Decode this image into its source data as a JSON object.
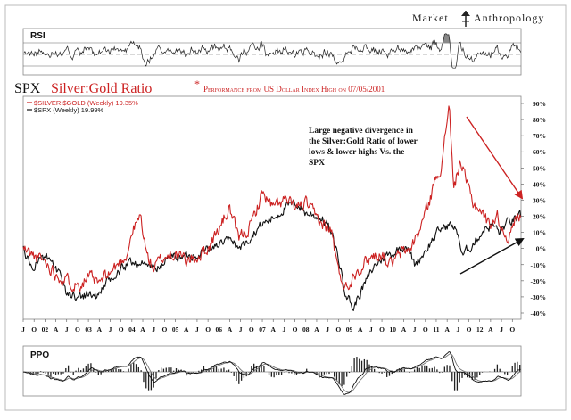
{
  "brand": {
    "name_left": "Market",
    "name_right": "Anthropology"
  },
  "rsi": {
    "label": "RSI"
  },
  "main": {
    "title_black": "SPX",
    "title_red": "Silver:Gold Ratio",
    "asterisk": "*",
    "subtitle": "Performance from US Dollar Index High on 07/05/2001",
    "legend": [
      {
        "text": "$SILVER:$GOLD (Weekly) 19.35%",
        "color": "#cc2222"
      },
      {
        "text": "$SPX (Weekly) 19.99%",
        "color": "#111111"
      }
    ],
    "annotation": [
      "Large negative divergence in",
      "the Silver:Gold Ratio of lower",
      "lows & lower highs Vs. the",
      "SPX"
    ]
  },
  "ppo": {
    "label": "PPO"
  },
  "colors": {
    "silver_gold": "#cc2222",
    "spx": "#111111",
    "arrow_down": "#cc2222",
    "arrow_up": "#111111"
  },
  "chart_data": {
    "type": "line",
    "yunit": "%",
    "ylim": [
      -40,
      90
    ],
    "y_ticks": [
      "90%",
      "80%",
      "70%",
      "60%",
      "50%",
      "40%",
      "30%",
      "20%",
      "10%",
      "0%",
      "-10%",
      "-20%",
      "-30%",
      "-40%"
    ],
    "x_labels": [
      "J",
      "O",
      "02",
      "A",
      "J",
      "O",
      "03",
      "A",
      "J",
      "O",
      "04",
      "A",
      "J",
      "O",
      "05",
      "A",
      "J",
      "O",
      "06",
      "A",
      "J",
      "O",
      "07",
      "A",
      "J",
      "O",
      "08",
      "A",
      "J",
      "O",
      "09",
      "A",
      "J",
      "O",
      "10",
      "A",
      "J",
      "O",
      "11",
      "A",
      "J",
      "O",
      "12",
      "A",
      "J",
      "O"
    ],
    "x_start": 2001.5,
    "x_end": 2012.95,
    "series": [
      {
        "name": "$SILVER:$GOLD (Weekly) 19.35%",
        "points": [
          [
            2001.5,
            0
          ],
          [
            2001.75,
            -5
          ],
          [
            2002.0,
            -8
          ],
          [
            2002.25,
            -15
          ],
          [
            2002.5,
            -20
          ],
          [
            2002.75,
            -22
          ],
          [
            2003.0,
            -18
          ],
          [
            2003.25,
            -22
          ],
          [
            2003.5,
            -15
          ],
          [
            2003.75,
            -8
          ],
          [
            2003.9,
            -2
          ],
          [
            2004.0,
            10
          ],
          [
            2004.2,
            20
          ],
          [
            2004.35,
            -5
          ],
          [
            2004.5,
            -12
          ],
          [
            2004.75,
            -5
          ],
          [
            2005.0,
            -3
          ],
          [
            2005.25,
            -8
          ],
          [
            2005.5,
            -5
          ],
          [
            2005.75,
            0
          ],
          [
            2006.0,
            12
          ],
          [
            2006.25,
            25
          ],
          [
            2006.45,
            5
          ],
          [
            2006.75,
            15
          ],
          [
            2007.0,
            35
          ],
          [
            2007.25,
            25
          ],
          [
            2007.5,
            30
          ],
          [
            2007.75,
            25
          ],
          [
            2008.0,
            28
          ],
          [
            2008.2,
            20
          ],
          [
            2008.4,
            15
          ],
          [
            2008.6,
            10
          ],
          [
            2008.75,
            -15
          ],
          [
            2008.95,
            -25
          ],
          [
            2009.1,
            -15
          ],
          [
            2009.3,
            -10
          ],
          [
            2009.5,
            -5
          ],
          [
            2009.75,
            -3
          ],
          [
            2009.95,
            -10
          ],
          [
            2010.2,
            -3
          ],
          [
            2010.4,
            0
          ],
          [
            2010.6,
            10
          ],
          [
            2010.85,
            30
          ],
          [
            2011.0,
            45
          ],
          [
            2011.15,
            55
          ],
          [
            2011.3,
            92
          ],
          [
            2011.4,
            35
          ],
          [
            2011.55,
            55
          ],
          [
            2011.7,
            40
          ],
          [
            2011.85,
            28
          ],
          [
            2012.0,
            25
          ],
          [
            2012.2,
            15
          ],
          [
            2012.4,
            20
          ],
          [
            2012.55,
            10
          ],
          [
            2012.7,
            8
          ],
          [
            2012.85,
            20
          ],
          [
            2012.95,
            19.35
          ]
        ]
      },
      {
        "name": "$SPX (Weekly) 19.99%",
        "points": [
          [
            2001.5,
            0
          ],
          [
            2001.7,
            -12
          ],
          [
            2001.9,
            -5
          ],
          [
            2002.1,
            -8
          ],
          [
            2002.3,
            -15
          ],
          [
            2002.5,
            -28
          ],
          [
            2002.75,
            -30
          ],
          [
            2003.0,
            -28
          ],
          [
            2003.2,
            -30
          ],
          [
            2003.4,
            -22
          ],
          [
            2003.6,
            -18
          ],
          [
            2003.8,
            -12
          ],
          [
            2004.0,
            -8
          ],
          [
            2004.3,
            -10
          ],
          [
            2004.6,
            -12
          ],
          [
            2004.9,
            -5
          ],
          [
            2005.2,
            -5
          ],
          [
            2005.5,
            -3
          ],
          [
            2005.8,
            0
          ],
          [
            2006.0,
            3
          ],
          [
            2006.3,
            5
          ],
          [
            2006.5,
            0
          ],
          [
            2006.8,
            10
          ],
          [
            2007.0,
            15
          ],
          [
            2007.3,
            20
          ],
          [
            2007.5,
            25
          ],
          [
            2007.8,
            28
          ],
          [
            2008.0,
            22
          ],
          [
            2008.3,
            20
          ],
          [
            2008.5,
            15
          ],
          [
            2008.7,
            0
          ],
          [
            2008.9,
            -25
          ],
          [
            2009.1,
            -38
          ],
          [
            2009.2,
            -30
          ],
          [
            2009.4,
            -20
          ],
          [
            2009.6,
            -10
          ],
          [
            2009.8,
            -5
          ],
          [
            2010.0,
            -3
          ],
          [
            2010.3,
            3
          ],
          [
            2010.5,
            -10
          ],
          [
            2010.7,
            -3
          ],
          [
            2010.9,
            5
          ],
          [
            2011.1,
            12
          ],
          [
            2011.3,
            15
          ],
          [
            2011.5,
            10
          ],
          [
            2011.6,
            -5
          ],
          [
            2011.75,
            0
          ],
          [
            2011.9,
            5
          ],
          [
            2012.1,
            12
          ],
          [
            2012.3,
            15
          ],
          [
            2012.45,
            10
          ],
          [
            2012.6,
            15
          ],
          [
            2012.8,
            18
          ],
          [
            2012.95,
            19.99
          ]
        ]
      }
    ]
  }
}
